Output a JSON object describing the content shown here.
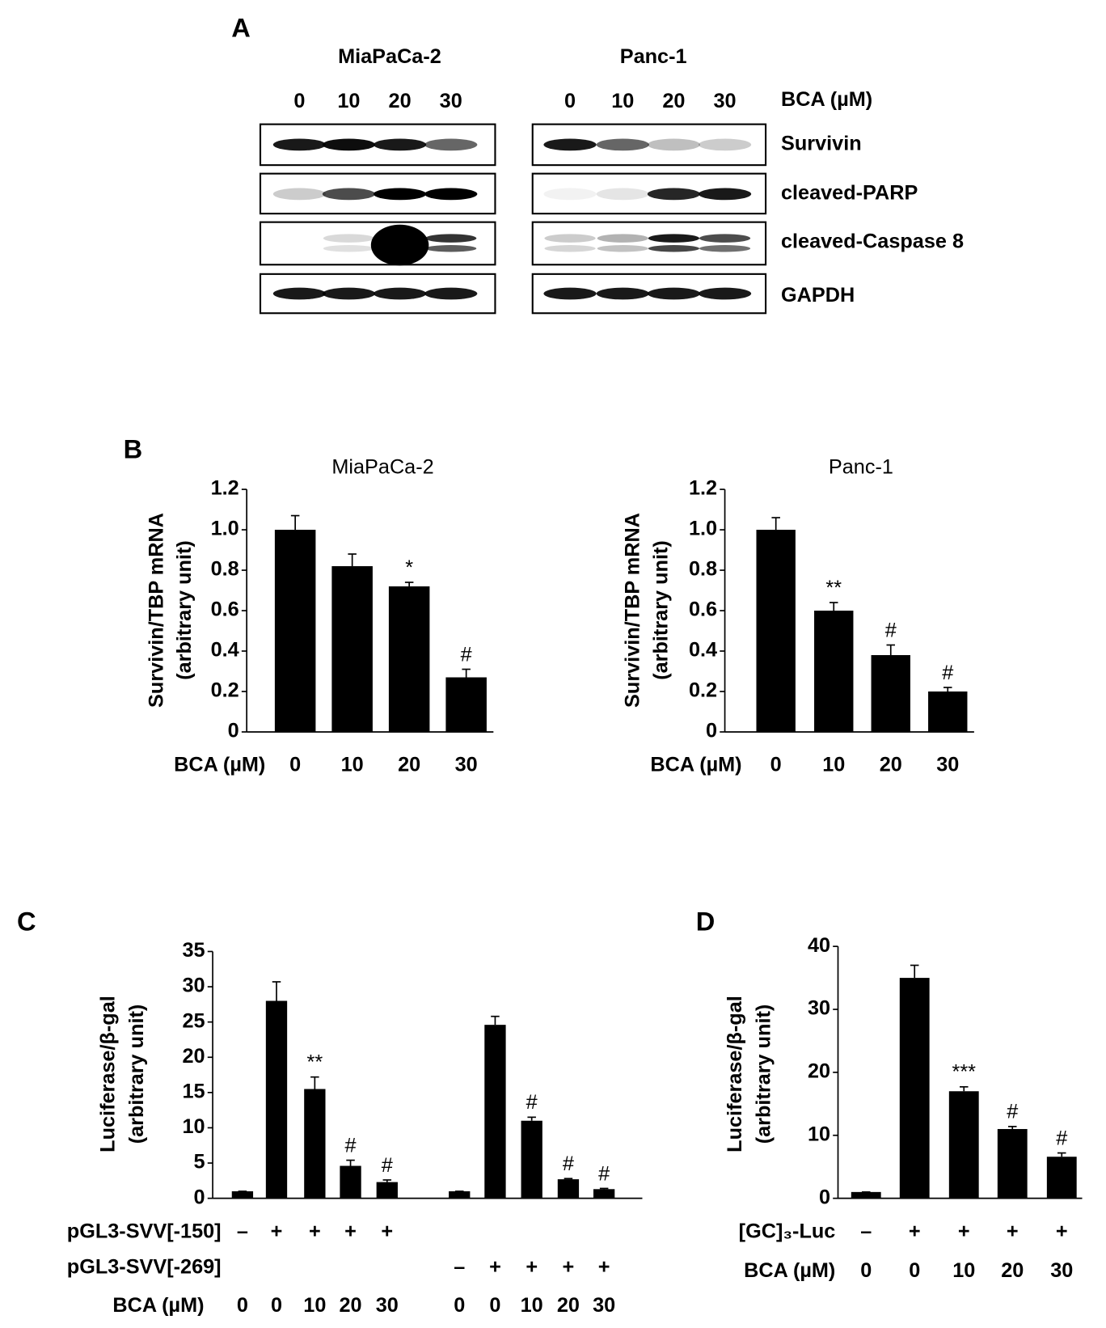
{
  "panel_a": {
    "label": "A",
    "dose_label": "BCA (µM)",
    "cell_lines": [
      {
        "name": "MiaPaCa-2",
        "doses": [
          "0",
          "10",
          "20",
          "30"
        ]
      },
      {
        "name": "Panc-1",
        "doses": [
          "0",
          "10",
          "20",
          "30"
        ]
      }
    ],
    "proteins": [
      "Survivin",
      "cleaved-PARP",
      "cleaved-Caspase 8",
      "GAPDH"
    ]
  },
  "chart_data": [
    {
      "type": "bar",
      "panel_label": "B",
      "title": "MiaPaCa-2",
      "ylabel": [
        "Survivin/TBP mRNA",
        "(arbitrary unit)"
      ],
      "xlabel": "BCA (µM)",
      "categories": [
        "0",
        "10",
        "20",
        "30"
      ],
      "values": [
        1.0,
        0.82,
        0.72,
        0.27
      ],
      "errors": [
        0.07,
        0.06,
        0.02,
        0.04
      ],
      "annotations": [
        null,
        null,
        "*",
        "#"
      ],
      "ylim": [
        0,
        1.2
      ],
      "yticks": [
        0,
        0.2,
        0.4,
        0.6,
        0.8,
        {
          "value": 1,
          "label": "1.0"
        },
        1.2
      ],
      "color": "#000000"
    },
    {
      "type": "bar",
      "title": "Panc-1",
      "ylabel": [
        "Survivin/TBP mRNA",
        "(arbitrary unit)"
      ],
      "xlabel": "BCA (µM)",
      "categories": [
        "0",
        "10",
        "20",
        "30"
      ],
      "values": [
        1.0,
        0.6,
        0.38,
        0.2
      ],
      "errors": [
        0.06,
        0.04,
        0.05,
        0.02
      ],
      "annotations": [
        null,
        "**",
        "#",
        "#"
      ],
      "ylim": [
        0,
        1.2
      ],
      "yticks": [
        0,
        0.2,
        0.4,
        0.6,
        0.8,
        {
          "value": 1,
          "label": "1.0"
        },
        1.2
      ],
      "color": "#000000"
    },
    {
      "type": "bar",
      "panel_label": "C",
      "ylabel": [
        "Luciferase/β-gal",
        "(arbitrary unit)"
      ],
      "xlabel": "BCA (µM)",
      "categories": [
        "0",
        "0",
        "10",
        "20",
        "30",
        "0",
        "0",
        "10",
        "20",
        "30"
      ],
      "values": [
        1,
        28,
        15.5,
        4.6,
        2.3,
        1,
        24.6,
        11,
        2.7,
        1.3
      ],
      "errors": [
        0,
        2.7,
        1.7,
        0.8,
        0.3,
        0,
        1.2,
        0.5,
        0.1,
        0.1
      ],
      "annotations": [
        null,
        null,
        "**",
        "#",
        "#",
        null,
        null,
        "#",
        "#",
        "#"
      ],
      "rows": [
        {
          "name": "pGL3-SVV[-150]",
          "marks": [
            "–",
            "+",
            "+",
            "+",
            "+",
            null,
            null,
            null,
            null,
            null
          ]
        },
        {
          "name": "pGL3-SVV[-269]",
          "marks": [
            null,
            null,
            null,
            null,
            null,
            "–",
            "+",
            "+",
            "+",
            "+"
          ]
        }
      ],
      "ylim": [
        0,
        35
      ],
      "yticks": [
        0,
        5,
        10,
        15,
        20,
        25,
        30,
        35
      ],
      "color": "#000000"
    },
    {
      "type": "bar",
      "panel_label": "D",
      "ylabel": [
        "Luciferase/β-gal",
        "(arbitrary unit)"
      ],
      "xlabel": "BCA (µM)",
      "categories": [
        "0",
        "0",
        "10",
        "20",
        "30"
      ],
      "values": [
        1,
        35,
        17,
        11,
        6.6
      ],
      "errors": [
        0,
        2,
        0.7,
        0.4,
        0.6
      ],
      "annotations": [
        null,
        null,
        "***",
        "#",
        "#"
      ],
      "rows": [
        {
          "name": "[GC]₃-Luc",
          "marks": [
            "–",
            "+",
            "+",
            "+",
            "+"
          ]
        }
      ],
      "ylim": [
        0,
        40
      ],
      "yticks": [
        0,
        10,
        20,
        30,
        40
      ],
      "color": "#000000"
    }
  ]
}
